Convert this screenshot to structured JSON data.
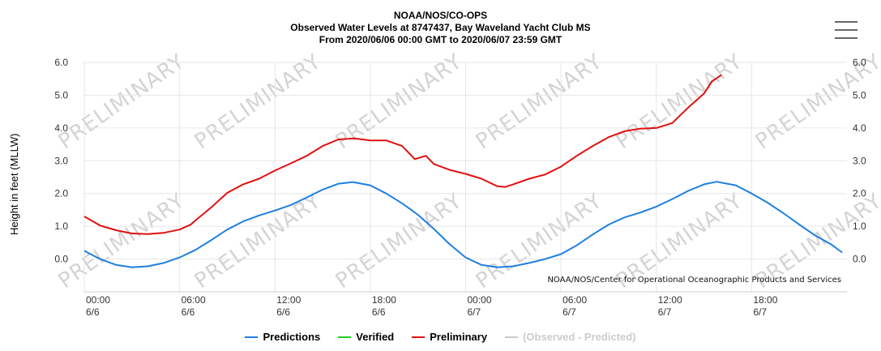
{
  "header": {
    "line1": "NOAA/NOS/CO-OPS",
    "line2": "Observed Water Levels at 8747437, Bay Waveland Yacht Club MS",
    "line3": "From 2020/06/06 00:00 GMT to 2020/06/07 23:59 GMT"
  },
  "credit": "NOAA/NOS/Center for Operational Oceanographic Products and Services",
  "watermark_text": "PRELIMINARY",
  "menu_icon": "hamburger-menu-icon",
  "legend": [
    {
      "label": "Predictions",
      "color": "#1f7fe0",
      "enabled": true
    },
    {
      "label": "Verified",
      "color": "#22cc22",
      "enabled": true
    },
    {
      "label": "Preliminary",
      "color": "#e01010",
      "enabled": true
    },
    {
      "label": "(Observed - Predicted)",
      "color": "#cccccc",
      "enabled": false
    }
  ],
  "chart_data": {
    "type": "line",
    "ylabel": "Height in feet (MLLW)",
    "xlabel": "",
    "x_unit": "hours since 2020/06/06 00:00 GMT",
    "xlim": [
      0,
      48
    ],
    "ylim": [
      -1,
      6
    ],
    "yticks": [
      0,
      1,
      2,
      3,
      4,
      5,
      6
    ],
    "ytick_labels": [
      "0.0",
      "1.0",
      "2.0",
      "3.0",
      "4.0",
      "5.0",
      "6.0"
    ],
    "xticks": [
      {
        "x": 0,
        "time": "00:00",
        "date": "6/6"
      },
      {
        "x": 6,
        "time": "06:00",
        "date": "6/6"
      },
      {
        "x": 12,
        "time": "12:00",
        "date": "6/6"
      },
      {
        "x": 18,
        "time": "18:00",
        "date": "6/6"
      },
      {
        "x": 24,
        "time": "00:00",
        "date": "6/7"
      },
      {
        "x": 30,
        "time": "06:00",
        "date": "6/7"
      },
      {
        "x": 36,
        "time": "12:00",
        "date": "6/7"
      },
      {
        "x": 42,
        "time": "18:00",
        "date": "6/7"
      }
    ],
    "grid": true,
    "series": [
      {
        "name": "Predictions",
        "color": "#1f7fe0",
        "points": [
          [
            0,
            0.25
          ],
          [
            1,
            0.0
          ],
          [
            2,
            -0.18
          ],
          [
            3,
            -0.25
          ],
          [
            4,
            -0.22
          ],
          [
            5,
            -0.12
          ],
          [
            6,
            0.05
          ],
          [
            7,
            0.28
          ],
          [
            8,
            0.58
          ],
          [
            9,
            0.9
          ],
          [
            10,
            1.15
          ],
          [
            11,
            1.33
          ],
          [
            12,
            1.48
          ],
          [
            13,
            1.65
          ],
          [
            14,
            1.88
          ],
          [
            15,
            2.12
          ],
          [
            16,
            2.3
          ],
          [
            16.9,
            2.35
          ],
          [
            18,
            2.25
          ],
          [
            19,
            2.0
          ],
          [
            20,
            1.7
          ],
          [
            21,
            1.35
          ],
          [
            22,
            0.92
          ],
          [
            23,
            0.45
          ],
          [
            24,
            0.05
          ],
          [
            25,
            -0.18
          ],
          [
            26,
            -0.25
          ],
          [
            27,
            -0.22
          ],
          [
            28,
            -0.12
          ],
          [
            29,
            0.0
          ],
          [
            30,
            0.15
          ],
          [
            31,
            0.42
          ],
          [
            32,
            0.75
          ],
          [
            33,
            1.05
          ],
          [
            34,
            1.27
          ],
          [
            35,
            1.42
          ],
          [
            36,
            1.6
          ],
          [
            37,
            1.83
          ],
          [
            38,
            2.08
          ],
          [
            39,
            2.28
          ],
          [
            39.8,
            2.36
          ],
          [
            41,
            2.25
          ],
          [
            42,
            2.0
          ],
          [
            43,
            1.72
          ],
          [
            44,
            1.4
          ],
          [
            45,
            1.05
          ],
          [
            46,
            0.72
          ],
          [
            47,
            0.45
          ],
          [
            47.7,
            0.2
          ]
        ]
      },
      {
        "name": "Verified",
        "color": "#22cc22",
        "points": []
      },
      {
        "name": "Preliminary",
        "color": "#e01010",
        "points": [
          [
            0,
            1.3
          ],
          [
            1,
            1.02
          ],
          [
            2,
            0.88
          ],
          [
            3,
            0.78
          ],
          [
            4,
            0.76
          ],
          [
            5,
            0.8
          ],
          [
            6,
            0.9
          ],
          [
            6.7,
            1.05
          ],
          [
            7,
            1.18
          ],
          [
            8,
            1.58
          ],
          [
            9,
            2.02
          ],
          [
            10,
            2.28
          ],
          [
            11,
            2.45
          ],
          [
            12,
            2.7
          ],
          [
            13,
            2.92
          ],
          [
            14,
            3.15
          ],
          [
            15,
            3.45
          ],
          [
            16,
            3.65
          ],
          [
            17,
            3.68
          ],
          [
            18,
            3.62
          ],
          [
            19,
            3.62
          ],
          [
            20,
            3.45
          ],
          [
            20.8,
            3.05
          ],
          [
            21.5,
            3.15
          ],
          [
            22,
            2.9
          ],
          [
            23,
            2.72
          ],
          [
            24,
            2.6
          ],
          [
            25,
            2.45
          ],
          [
            26,
            2.22
          ],
          [
            26.5,
            2.2
          ],
          [
            27,
            2.28
          ],
          [
            28,
            2.45
          ],
          [
            29,
            2.58
          ],
          [
            30,
            2.82
          ],
          [
            31,
            3.15
          ],
          [
            32,
            3.45
          ],
          [
            33,
            3.72
          ],
          [
            34,
            3.9
          ],
          [
            35,
            3.98
          ],
          [
            36,
            4.0
          ],
          [
            37,
            4.15
          ],
          [
            38,
            4.62
          ],
          [
            39,
            5.05
          ],
          [
            39.5,
            5.42
          ],
          [
            40.1,
            5.62
          ]
        ]
      }
    ]
  }
}
